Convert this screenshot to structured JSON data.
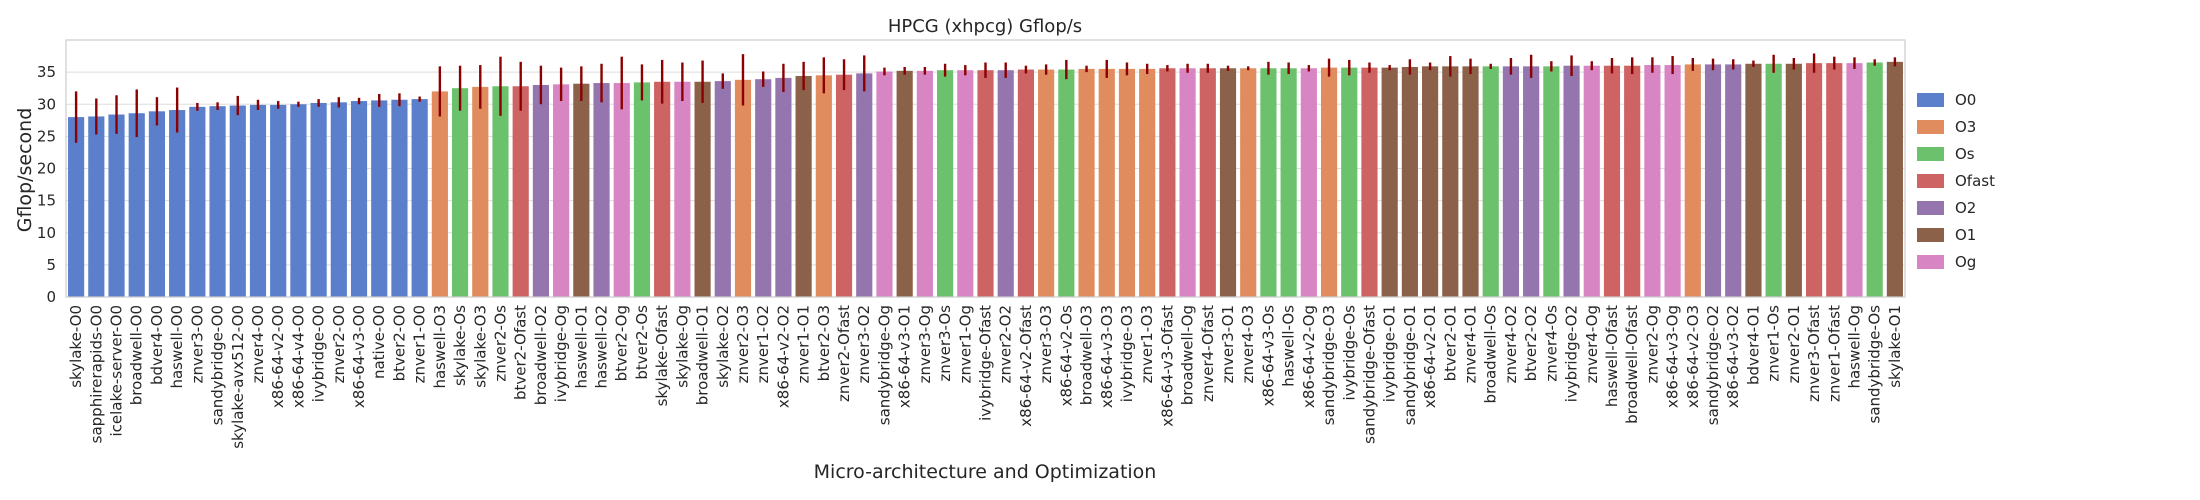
{
  "chart_data": {
    "type": "bar",
    "title": "HPCG (xhpcg) Gflop/s",
    "xlabel": "Micro-architecture and Optimization",
    "ylabel": "Gflop/second",
    "ylim": [
      0,
      40
    ],
    "yticks": [
      0,
      5,
      10,
      15,
      20,
      25,
      30,
      35
    ],
    "grid": true,
    "legend_position": "right",
    "error_bar_color": "#8b0000",
    "legend": [
      {
        "name": "O0",
        "color": "#5b7fcb"
      },
      {
        "name": "O3",
        "color": "#e08c5e"
      },
      {
        "name": "Os",
        "color": "#6cc26c"
      },
      {
        "name": "Ofast",
        "color": "#cd6363"
      },
      {
        "name": "O2",
        "color": "#9575ae"
      },
      {
        "name": "O1",
        "color": "#8c6149"
      },
      {
        "name": "Og",
        "color": "#d886c3"
      }
    ],
    "bars": [
      {
        "label": "skylake-O0",
        "value": 28.0,
        "err": 4.0,
        "opt": "O0"
      },
      {
        "label": "sapphirerapids-O0",
        "value": 28.1,
        "err": 2.8,
        "opt": "O0"
      },
      {
        "label": "icelake-server-O0",
        "value": 28.4,
        "err": 3.0,
        "opt": "O0"
      },
      {
        "label": "broadwell-O0",
        "value": 28.6,
        "err": 3.7,
        "opt": "O0"
      },
      {
        "label": "bdver4-O0",
        "value": 28.9,
        "err": 2.2,
        "opt": "O0"
      },
      {
        "label": "haswell-O0",
        "value": 29.1,
        "err": 3.5,
        "opt": "O0"
      },
      {
        "label": "znver3-O0",
        "value": 29.6,
        "err": 0.6,
        "opt": "O0"
      },
      {
        "label": "sandybridge-O0",
        "value": 29.7,
        "err": 0.6,
        "opt": "O0"
      },
      {
        "label": "skylake-avx512-O0",
        "value": 29.8,
        "err": 1.5,
        "opt": "O0"
      },
      {
        "label": "znver4-O0",
        "value": 29.9,
        "err": 0.8,
        "opt": "O0"
      },
      {
        "label": "x86-64-v2-O0",
        "value": 29.9,
        "err": 0.6,
        "opt": "O0"
      },
      {
        "label": "x86-64-v4-O0",
        "value": 30.0,
        "err": 0.4,
        "opt": "O0"
      },
      {
        "label": "ivybridge-O0",
        "value": 30.2,
        "err": 0.6,
        "opt": "O0"
      },
      {
        "label": "znver2-O0",
        "value": 30.3,
        "err": 0.8,
        "opt": "O0"
      },
      {
        "label": "x86-64-v3-O0",
        "value": 30.5,
        "err": 0.5,
        "opt": "O0"
      },
      {
        "label": "native-O0",
        "value": 30.6,
        "err": 1.0,
        "opt": "O0"
      },
      {
        "label": "btver2-O0",
        "value": 30.7,
        "err": 1.0,
        "opt": "O0"
      },
      {
        "label": "znver1-O0",
        "value": 30.8,
        "err": 0.4,
        "opt": "O0"
      },
      {
        "label": "haswell-O3",
        "value": 32.0,
        "err": 3.9,
        "opt": "O3"
      },
      {
        "label": "skylake-Os",
        "value": 32.5,
        "err": 3.5,
        "opt": "Os"
      },
      {
        "label": "skylake-O3",
        "value": 32.7,
        "err": 3.4,
        "opt": "O3"
      },
      {
        "label": "znver2-Os",
        "value": 32.8,
        "err": 4.6,
        "opt": "Os"
      },
      {
        "label": "btver2-Ofast",
        "value": 32.8,
        "err": 3.8,
        "opt": "Ofast"
      },
      {
        "label": "broadwell-O2",
        "value": 33.0,
        "err": 3.0,
        "opt": "O2"
      },
      {
        "label": "ivybridge-Og",
        "value": 33.1,
        "err": 2.6,
        "opt": "Og"
      },
      {
        "label": "haswell-O1",
        "value": 33.2,
        "err": 2.7,
        "opt": "O1"
      },
      {
        "label": "haswell-O2",
        "value": 33.3,
        "err": 3.0,
        "opt": "O2"
      },
      {
        "label": "btver2-Og",
        "value": 33.3,
        "err": 4.1,
        "opt": "Og"
      },
      {
        "label": "btver2-Os",
        "value": 33.4,
        "err": 2.8,
        "opt": "Os"
      },
      {
        "label": "skylake-Ofast",
        "value": 33.5,
        "err": 3.4,
        "opt": "Ofast"
      },
      {
        "label": "skylake-Og",
        "value": 33.5,
        "err": 3.0,
        "opt": "Og"
      },
      {
        "label": "broadwell-O1",
        "value": 33.5,
        "err": 3.3,
        "opt": "O1"
      },
      {
        "label": "skylake-O2",
        "value": 33.6,
        "err": 1.2,
        "opt": "O2"
      },
      {
        "label": "znver2-O3",
        "value": 33.8,
        "err": 4.0,
        "opt": "O3"
      },
      {
        "label": "znver1-O2",
        "value": 33.9,
        "err": 1.2,
        "opt": "O2"
      },
      {
        "label": "x86-64-v2-O2",
        "value": 34.1,
        "err": 2.2,
        "opt": "O2"
      },
      {
        "label": "znver1-O1",
        "value": 34.4,
        "err": 2.2,
        "opt": "O1"
      },
      {
        "label": "btver2-O3",
        "value": 34.5,
        "err": 2.8,
        "opt": "O3"
      },
      {
        "label": "znver2-Ofast",
        "value": 34.6,
        "err": 2.4,
        "opt": "Ofast"
      },
      {
        "label": "znver3-O2",
        "value": 34.8,
        "err": 2.8,
        "opt": "O2"
      },
      {
        "label": "sandybridge-Og",
        "value": 35.1,
        "err": 0.6,
        "opt": "Og"
      },
      {
        "label": "x86-64-v3-O1",
        "value": 35.2,
        "err": 0.6,
        "opt": "O1"
      },
      {
        "label": "znver3-Og",
        "value": 35.2,
        "err": 0.6,
        "opt": "Og"
      },
      {
        "label": "znver3-Os",
        "value": 35.3,
        "err": 1.0,
        "opt": "Os"
      },
      {
        "label": "znver1-Og",
        "value": 35.3,
        "err": 0.8,
        "opt": "Og"
      },
      {
        "label": "ivybridge-Ofast",
        "value": 35.3,
        "err": 1.2,
        "opt": "Ofast"
      },
      {
        "label": "znver2-O2",
        "value": 35.3,
        "err": 1.2,
        "opt": "O2"
      },
      {
        "label": "x86-64-v2-Ofast",
        "value": 35.4,
        "err": 0.6,
        "opt": "Ofast"
      },
      {
        "label": "znver3-O3",
        "value": 35.4,
        "err": 0.8,
        "opt": "O3"
      },
      {
        "label": "x86-64-v2-Os",
        "value": 35.4,
        "err": 1.5,
        "opt": "Os"
      },
      {
        "label": "broadwell-O3",
        "value": 35.5,
        "err": 0.5,
        "opt": "O3"
      },
      {
        "label": "x86-64-v3-O3",
        "value": 35.5,
        "err": 1.4,
        "opt": "O3"
      },
      {
        "label": "ivybridge-O3",
        "value": 35.5,
        "err": 1.0,
        "opt": "O3"
      },
      {
        "label": "znver1-O3",
        "value": 35.5,
        "err": 0.8,
        "opt": "O3"
      },
      {
        "label": "x86-64-v3-Ofast",
        "value": 35.6,
        "err": 0.5,
        "opt": "Ofast"
      },
      {
        "label": "broadwell-Og",
        "value": 35.6,
        "err": 0.7,
        "opt": "Og"
      },
      {
        "label": "znver4-Ofast",
        "value": 35.6,
        "err": 0.7,
        "opt": "Ofast"
      },
      {
        "label": "znver3-O1",
        "value": 35.6,
        "err": 0.4,
        "opt": "O1"
      },
      {
        "label": "znver4-O3",
        "value": 35.6,
        "err": 0.3,
        "opt": "O3"
      },
      {
        "label": "x86-64-v3-Os",
        "value": 35.6,
        "err": 1.0,
        "opt": "Os"
      },
      {
        "label": "haswell-Os",
        "value": 35.6,
        "err": 0.9,
        "opt": "Os"
      },
      {
        "label": "x86-64-v2-Og",
        "value": 35.6,
        "err": 0.5,
        "opt": "Og"
      },
      {
        "label": "sandybridge-O3",
        "value": 35.7,
        "err": 1.4,
        "opt": "O3"
      },
      {
        "label": "ivybridge-Os",
        "value": 35.7,
        "err": 1.2,
        "opt": "Os"
      },
      {
        "label": "sandybridge-Ofast",
        "value": 35.7,
        "err": 0.8,
        "opt": "Ofast"
      },
      {
        "label": "ivybridge-O1",
        "value": 35.7,
        "err": 0.4,
        "opt": "O1"
      },
      {
        "label": "sandybridge-O1",
        "value": 35.8,
        "err": 1.2,
        "opt": "O1"
      },
      {
        "label": "x86-64-v2-O1",
        "value": 35.9,
        "err": 0.6,
        "opt": "O1"
      },
      {
        "label": "btver2-O1",
        "value": 35.9,
        "err": 1.6,
        "opt": "O1"
      },
      {
        "label": "znver4-O1",
        "value": 35.9,
        "err": 1.2,
        "opt": "O1"
      },
      {
        "label": "broadwell-Os",
        "value": 35.9,
        "err": 0.4,
        "opt": "Os"
      },
      {
        "label": "znver4-O2",
        "value": 35.9,
        "err": 1.3,
        "opt": "O2"
      },
      {
        "label": "btver2-O2",
        "value": 35.9,
        "err": 1.8,
        "opt": "O2"
      },
      {
        "label": "znver4-Os",
        "value": 35.9,
        "err": 0.8,
        "opt": "Os"
      },
      {
        "label": "ivybridge-O2",
        "value": 36.0,
        "err": 1.6,
        "opt": "O2"
      },
      {
        "label": "znver4-Og",
        "value": 36.0,
        "err": 0.7,
        "opt": "Og"
      },
      {
        "label": "haswell-Ofast",
        "value": 36.0,
        "err": 1.2,
        "opt": "Ofast"
      },
      {
        "label": "broadwell-Ofast",
        "value": 36.0,
        "err": 1.3,
        "opt": "Ofast"
      },
      {
        "label": "znver2-Og",
        "value": 36.1,
        "err": 1.2,
        "opt": "Og"
      },
      {
        "label": "x86-64-v3-Og",
        "value": 36.1,
        "err": 1.4,
        "opt": "Og"
      },
      {
        "label": "x86-64-v2-O3",
        "value": 36.2,
        "err": 1.0,
        "opt": "O3"
      },
      {
        "label": "sandybridge-O2",
        "value": 36.2,
        "err": 0.9,
        "opt": "O2"
      },
      {
        "label": "x86-64-v3-O2",
        "value": 36.2,
        "err": 0.8,
        "opt": "O2"
      },
      {
        "label": "bdver4-O1",
        "value": 36.3,
        "err": 0.5,
        "opt": "O1"
      },
      {
        "label": "znver1-Os",
        "value": 36.3,
        "err": 1.4,
        "opt": "Os"
      },
      {
        "label": "znver2-O1",
        "value": 36.3,
        "err": 0.9,
        "opt": "O1"
      },
      {
        "label": "znver3-Ofast",
        "value": 36.4,
        "err": 1.5,
        "opt": "Ofast"
      },
      {
        "label": "znver1-Ofast",
        "value": 36.4,
        "err": 1.0,
        "opt": "Ofast"
      },
      {
        "label": "haswell-Og",
        "value": 36.4,
        "err": 0.9,
        "opt": "Og"
      },
      {
        "label": "sandybridge-Os",
        "value": 36.5,
        "err": 0.5,
        "opt": "Os"
      },
      {
        "label": "skylake-O1",
        "value": 36.6,
        "err": 0.7,
        "opt": "O1"
      }
    ]
  }
}
